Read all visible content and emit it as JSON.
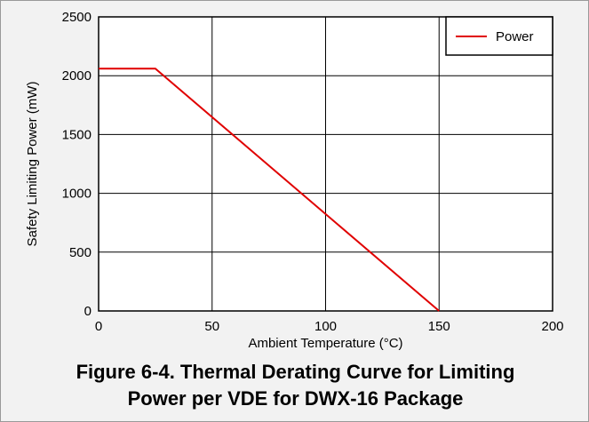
{
  "chart_data": {
    "type": "line",
    "xlabel": "Ambient Temperature (°C)",
    "ylabel": "Safety Limiting Power (mW)",
    "xlim": [
      0,
      200
    ],
    "ylim": [
      0,
      2500
    ],
    "xticks": [
      0,
      50,
      100,
      150,
      200
    ],
    "yticks": [
      0,
      500,
      1000,
      1500,
      2000,
      2500
    ],
    "grid": true,
    "legend_position": "top-right",
    "series": [
      {
        "name": "Power",
        "color": "#e00000",
        "points": [
          {
            "x": 0,
            "y": 2060
          },
          {
            "x": 25,
            "y": 2060
          },
          {
            "x": 150,
            "y": 0
          }
        ]
      }
    ]
  },
  "caption": {
    "line1": "Figure 6-4. Thermal Derating Curve for Limiting",
    "line2": "Power per VDE for DWX-16 Package"
  }
}
